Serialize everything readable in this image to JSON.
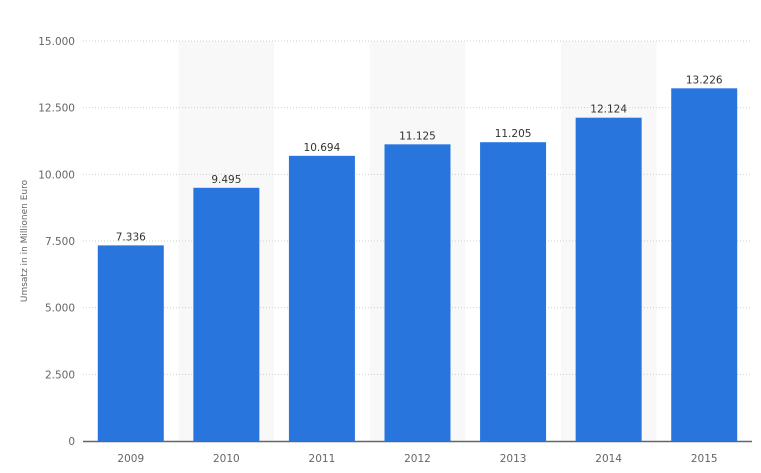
{
  "chart_data": {
    "type": "bar",
    "title": "",
    "xlabel": "",
    "ylabel": "Umsatz in in Millionen Euro",
    "categories": [
      "2009",
      "2010",
      "2011",
      "2012",
      "2013",
      "2014",
      "2015"
    ],
    "values": [
      7336,
      9495,
      10694,
      11125,
      11205,
      12124,
      13226
    ],
    "data_labels": [
      "7.336",
      "9.495",
      "10.694",
      "11.125",
      "11.205",
      "12.124",
      "13.226"
    ],
    "ylim": [
      0,
      15000
    ],
    "yticks": [
      0,
      2500,
      5000,
      7500,
      10000,
      12500,
      15000
    ],
    "ytick_labels": [
      "0",
      "2.500",
      "5.000",
      "7.500",
      "10.000",
      "12.500",
      "15.000"
    ],
    "grid": true,
    "bar_color": "#2876dd",
    "band_color": "#f8f8f8"
  }
}
